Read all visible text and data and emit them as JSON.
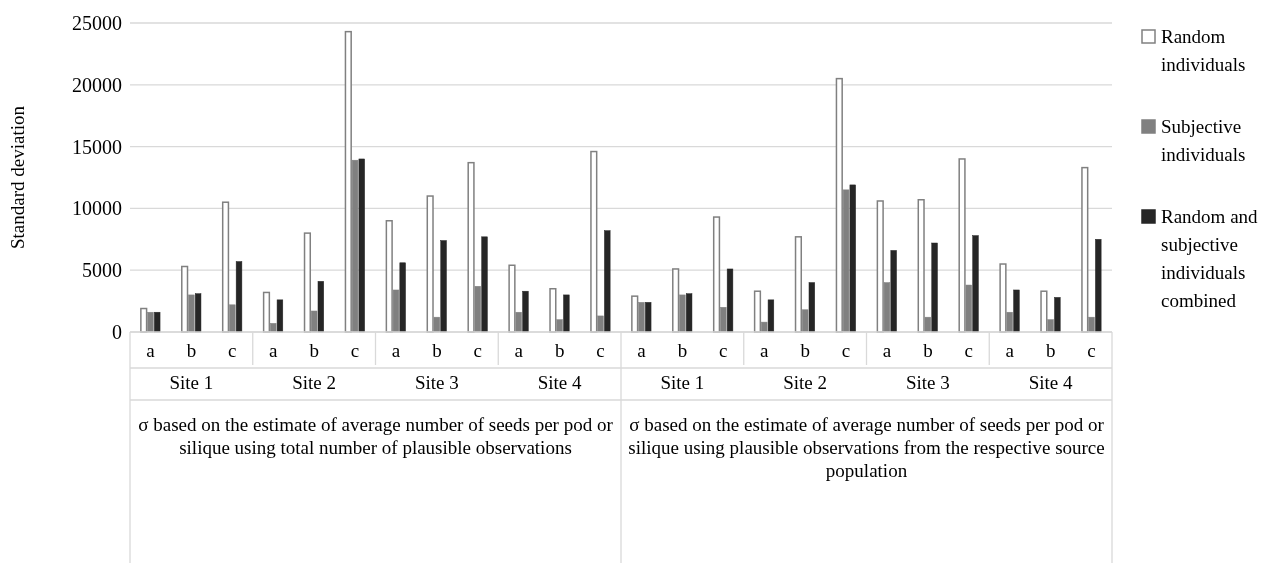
{
  "chart_data": {
    "type": "bar",
    "ylabel": "Standard deviation",
    "categories": [
      "a",
      "b",
      "c",
      "a",
      "b",
      "c",
      "a",
      "b",
      "c",
      "a",
      "b",
      "c",
      "a",
      "b",
      "c",
      "a",
      "b",
      "c",
      "a",
      "b",
      "c",
      "a",
      "b",
      "c"
    ],
    "series": [
      {
        "name": "Random individuals",
        "color": "#ffffff",
        "values": [
          1900,
          5300,
          10500,
          3200,
          8000,
          24300,
          9000,
          11000,
          13700,
          5400,
          3500,
          14600,
          2900,
          5100,
          9300,
          3300,
          7700,
          20500,
          10600,
          10700,
          14000,
          5500,
          3300,
          13300
        ]
      },
      {
        "name": "Subjective individuals",
        "color": "#808080",
        "values": [
          1600,
          3000,
          2200,
          700,
          1700,
          13900,
          3400,
          1200,
          3700,
          1600,
          1000,
          1300,
          2400,
          3000,
          2000,
          800,
          1800,
          11500,
          4000,
          1200,
          3800,
          1600,
          1000,
          1200
        ]
      },
      {
        "name": "Random and subjective individuals combined",
        "color": "#262626",
        "values": [
          1600,
          3100,
          5700,
          2600,
          4100,
          14000,
          5600,
          7400,
          7700,
          3300,
          3000,
          8200,
          2400,
          3100,
          5100,
          2600,
          4000,
          11900,
          6600,
          7200,
          7800,
          3400,
          2800,
          7500
        ]
      }
    ],
    "ylim": [
      0,
      25000
    ],
    "yticks": [
      0,
      5000,
      10000,
      15000,
      20000,
      25000
    ],
    "grid": "y",
    "legend": "right",
    "annotations": [
      "Site 1",
      "Site 2",
      "Site 3",
      "Site 4",
      "Site 1",
      "Site 2",
      "Site 3",
      "Site 4",
      "σ based on the estimate of average number of seeds per pod or silique using total number of plausible observations",
      "σ based on the estimate of average number of seeds per pod or silique using plausible observations from the respective source population"
    ]
  }
}
